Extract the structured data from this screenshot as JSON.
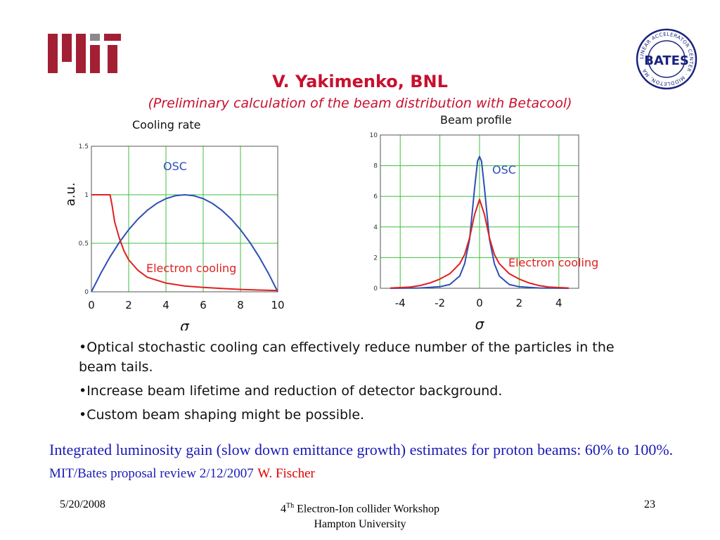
{
  "slide": {
    "title": "V. Yakimenko, BNL",
    "subtitle": "(Preliminary calculation of the beam distribution with Betacool)",
    "bullets": [
      "•Optical stochastic cooling can effectively reduce number of the particles in the beam tails.",
      "•Increase beam lifetime and reduction of detector background.",
      "•Custom beam shaping might be possible."
    ],
    "summary_main": "Integrated luminosity gain (slow down emittance growth) estimates for proton beams:  60% to 100%.",
    "summary_ref": "MIT/Bates proposal review 2/12/2007",
    "summary_author": "W. Fischer",
    "footer": {
      "date": "5/20/2008",
      "center_num": "4",
      "center_sup": "Th",
      "center_line1_rest": " Electron-Ion collider Workshop",
      "center_line2": "Hampton University",
      "page": "23"
    },
    "logos": {
      "mit_color": "#a31f34",
      "bates_text": "LINEAR ACCELERATOR CENTER · MIDDLETON, MA",
      "bates_center": "BATES"
    },
    "colors": {
      "title": "#c8102e",
      "summary": "#1a1ab8",
      "osc": "#2c4fb8",
      "electron": "#e02020",
      "grid": "#3fbf3f"
    }
  },
  "chart_data": [
    {
      "type": "line",
      "title": "Cooling rate",
      "xlabel": "σ",
      "ylabel": "a.u.",
      "xlim": [
        0,
        10
      ],
      "ylim": [
        0,
        1.5
      ],
      "xticks": [
        "0",
        "2",
        "4",
        "6",
        "8",
        "10"
      ],
      "yticks": [
        "0",
        "0.5",
        "1",
        "1.5"
      ],
      "grid": true,
      "series": [
        {
          "name": "OSC",
          "color": "#2c4fb8",
          "x": [
            0,
            0.5,
            1,
            1.5,
            2,
            2.5,
            3,
            3.5,
            4,
            4.5,
            5,
            5.5,
            6,
            6.5,
            7,
            7.5,
            8,
            8.5,
            9,
            9.5,
            10
          ],
          "y": [
            0,
            0.19,
            0.36,
            0.51,
            0.64,
            0.75,
            0.84,
            0.91,
            0.96,
            0.99,
            1.0,
            0.99,
            0.96,
            0.91,
            0.84,
            0.75,
            0.64,
            0.51,
            0.36,
            0.19,
            0
          ]
        },
        {
          "name": "Electron cooling",
          "color": "#e02020",
          "x": [
            0,
            1,
            1.1,
            1.25,
            1.5,
            1.75,
            2,
            2.5,
            3,
            4,
            5,
            6,
            7,
            8,
            9,
            10
          ],
          "y": [
            1,
            1,
            0.9,
            0.72,
            0.55,
            0.42,
            0.33,
            0.22,
            0.15,
            0.09,
            0.06,
            0.045,
            0.035,
            0.025,
            0.018,
            0.012
          ]
        }
      ]
    },
    {
      "type": "line",
      "title": "Beam profile",
      "xlabel": "σ",
      "ylabel": "",
      "xlim": [
        -5,
        5
      ],
      "ylim": [
        0,
        10
      ],
      "xticks": [
        "-4",
        "-2",
        "0",
        "2",
        "4"
      ],
      "yticks": [
        "0",
        "2",
        "4",
        "6",
        "8",
        "10"
      ],
      "grid": true,
      "series": [
        {
          "name": "OSC",
          "color": "#2c4fb8",
          "x": [
            -4.5,
            -3,
            -2,
            -1.5,
            -1,
            -0.75,
            -0.5,
            -0.25,
            -0.1,
            0,
            0.1,
            0.25,
            0.5,
            0.75,
            1,
            1.5,
            2,
            3,
            4.5
          ],
          "y": [
            0,
            0.02,
            0.1,
            0.25,
            0.8,
            1.6,
            3.2,
            6.5,
            8.3,
            8.6,
            8.3,
            6.5,
            3.2,
            1.6,
            0.8,
            0.25,
            0.1,
            0.02,
            0
          ]
        },
        {
          "name": "Electron cooling",
          "color": "#e02020",
          "x": [
            -4.5,
            -3.5,
            -3,
            -2.5,
            -2,
            -1.5,
            -1,
            -0.75,
            -0.5,
            -0.25,
            0,
            0.25,
            0.5,
            0.75,
            1,
            1.5,
            2,
            2.5,
            3,
            3.5,
            4.5
          ],
          "y": [
            0.02,
            0.08,
            0.18,
            0.35,
            0.6,
            0.95,
            1.6,
            2.2,
            3.3,
            4.8,
            5.8,
            4.8,
            3.3,
            2.2,
            1.6,
            0.95,
            0.6,
            0.35,
            0.18,
            0.08,
            0.02
          ]
        }
      ]
    }
  ]
}
